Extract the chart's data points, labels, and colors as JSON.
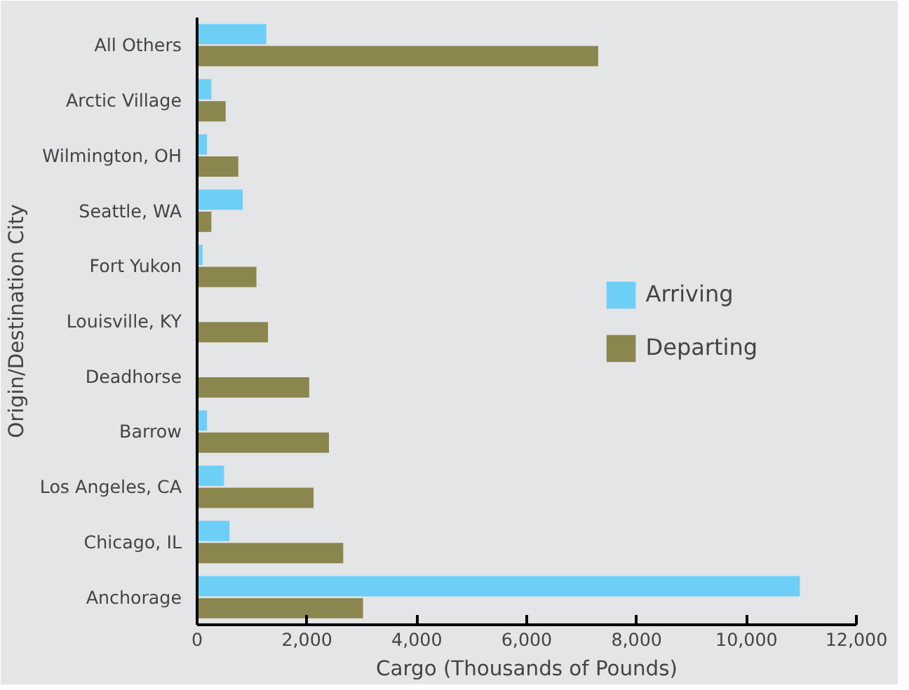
{
  "chart_data": {
    "type": "bar",
    "orientation": "horizontal",
    "xlabel": "Cargo (Thousands of Pounds)",
    "ylabel": "Origin/Destination City",
    "categories": [
      "All Others",
      "Arctic Village",
      "Wilmington, OH",
      "Seattle, WA",
      "Fort Yukon",
      "Louisville, KY",
      "Deadhorse",
      "Barrow",
      "Los Angeles, CA",
      "Chicago, IL",
      "Anchorage"
    ],
    "series": [
      {
        "name": "Arriving",
        "color": "#6dcff6",
        "values": [
          1260,
          260,
          180,
          830,
          100,
          null,
          null,
          180,
          490,
          590,
          10970
        ]
      },
      {
        "name": "Departing",
        "color": "#8b864e",
        "values": [
          7300,
          520,
          750,
          260,
          1080,
          1290,
          2040,
          2400,
          2120,
          2660,
          3020
        ]
      }
    ],
    "xlim": [
      0,
      12000
    ],
    "xticks": [
      0,
      {
        "value": 2000,
        "label": "2,000"
      },
      {
        "value": 4000,
        "label": "4,000"
      },
      {
        "value": 6000,
        "label": "6,000"
      },
      {
        "value": 8000,
        "label": "8,000"
      },
      {
        "value": 10000,
        "label": "10,000"
      },
      {
        "value": 12000,
        "label": "12,000"
      }
    ],
    "legend": "right"
  }
}
